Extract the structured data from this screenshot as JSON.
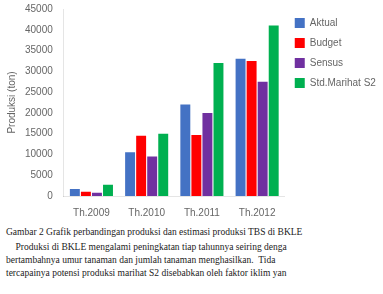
{
  "chart_data": {
    "type": "bar",
    "categories": [
      "Th.2009",
      "Th.2010",
      "Th.2011",
      "Th.2012"
    ],
    "series": [
      {
        "name": "Aktual",
        "color": "#4472C4",
        "values": [
          1700,
          10500,
          22000,
          33000
        ]
      },
      {
        "name": "Budget",
        "color": "#FF0000",
        "values": [
          1000,
          14500,
          14700,
          32500
        ]
      },
      {
        "name": "Sensus",
        "color": "#7030A0",
        "values": [
          800,
          9500,
          20000,
          27500
        ]
      },
      {
        "name": "Std.Marihat S2",
        "color": "#00B050",
        "values": [
          2700,
          15000,
          32000,
          41000
        ]
      }
    ],
    "ylabel": "Produksi (ton)",
    "ylim": [
      0,
      45000
    ],
    "yticks": [
      0,
      5000,
      10000,
      15000,
      20000,
      25000,
      30000,
      35000,
      40000,
      45000
    ],
    "grid": false,
    "legend": "right",
    "annotations": [
      "Gambar 2 Grafik perbandingan produksi dan estimasi produksi TBS di BKLE",
      "    Produksi di BKLE mengalami peningkatan tiap tahunnya seiring denga",
      "bertambahnya umur tanaman dan jumlah tanaman menghasilkan.  Tida",
      "tercapainya potensi produksi marihat S2 disebabkan oleh faktor iklim yan"
    ]
  }
}
